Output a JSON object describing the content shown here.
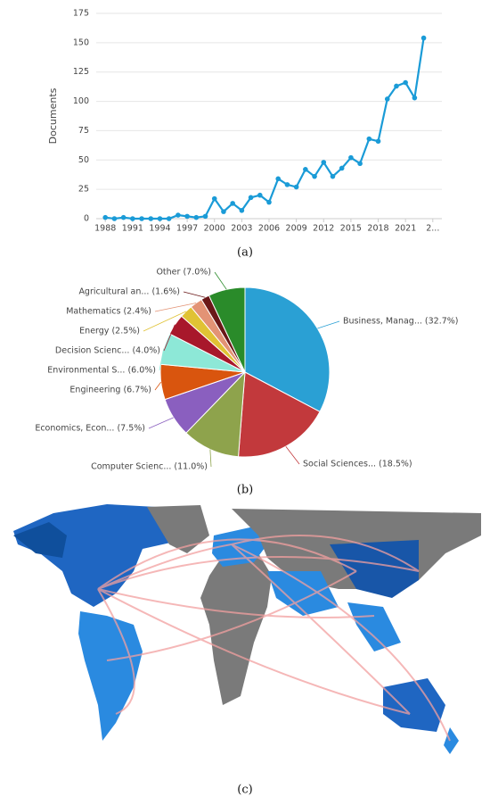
{
  "chart_data": [
    {
      "type": "line",
      "y_label": "Documents",
      "x": [
        1988,
        1989,
        1990,
        1991,
        1992,
        1993,
        1994,
        1995,
        1996,
        1997,
        1998,
        1999,
        2000,
        2001,
        2002,
        2003,
        2004,
        2005,
        2006,
        2007,
        2008,
        2009,
        2010,
        2011,
        2012,
        2013,
        2014,
        2015,
        2016,
        2017,
        2018,
        2019,
        2020,
        2021,
        2022,
        2023
      ],
      "values": [
        1,
        0,
        1,
        0,
        0,
        0,
        0,
        0,
        3,
        2,
        1,
        2,
        17,
        6,
        13,
        7,
        18,
        20,
        14,
        34,
        29,
        27,
        42,
        36,
        48,
        36,
        43,
        52,
        47,
        68,
        66,
        102,
        113,
        116,
        103,
        154
      ],
      "color": "#1a9bd7",
      "xlim": [
        1987,
        2025
      ],
      "xticks": [
        1988,
        1991,
        1994,
        1997,
        2000,
        2003,
        2006,
        2009,
        2012,
        2015,
        2018,
        2021,
        {
          "value": 2024,
          "label": "2..."
        }
      ],
      "ylim": [
        0,
        175
      ],
      "yticks": [
        0,
        25,
        50,
        75,
        100,
        125,
        150,
        175
      ],
      "grid": true
    },
    {
      "type": "pie",
      "labels": [
        "Business, Manag... (32.7%)",
        "Social Sciences... (18.5%)",
        "Computer Scienc... (11.0%)",
        "Economics, Econ... (7.5%)",
        "Engineering (6.7%)",
        "Environmental S... (6.0%)",
        "Decision Scienc... (4.0%)",
        "Energy (2.5%)",
        "Mathematics (2.4%)",
        "Agricultural an... (1.6%)",
        "Other (7.0%)"
      ],
      "values": [
        32.7,
        18.5,
        11.0,
        7.5,
        6.7,
        6.0,
        4.0,
        2.5,
        2.4,
        1.6,
        7.0
      ],
      "colors": [
        "#2aa0d4",
        "#c2393c",
        "#8ea34c",
        "#8a5fbf",
        "#d9550e",
        "#8de8d7",
        "#a8182b",
        "#e0c234",
        "#e39375",
        "#6a1818",
        "#2a8b2a"
      ]
    }
  ],
  "captions": [
    "(a)",
    "(b)",
    "(c)"
  ]
}
